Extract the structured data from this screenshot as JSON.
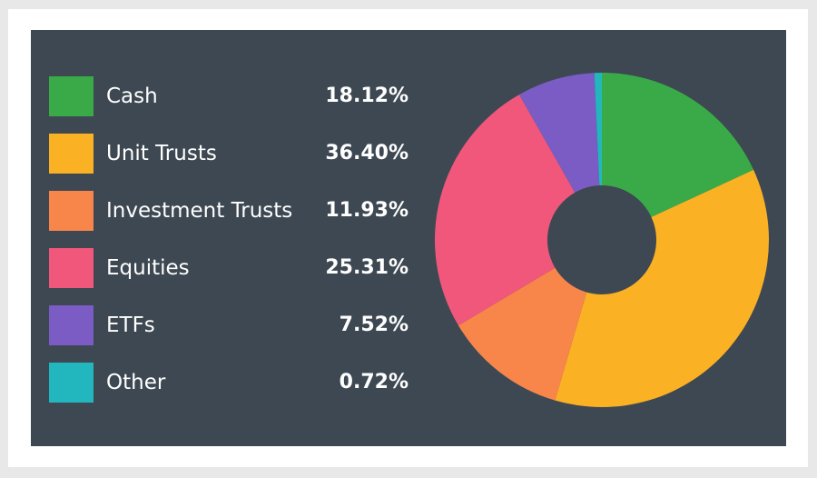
{
  "colors": {
    "page_background": "#e8e8e8",
    "frame_background": "#ffffff",
    "panel_background": "#3d4852",
    "text": "#ffffff"
  },
  "chart_data": {
    "type": "pie",
    "variant": "donut",
    "legend_position": "left",
    "categories": [
      "Cash",
      "Unit Trusts",
      "Investment Trusts",
      "Equities",
      "ETFs",
      "Other"
    ],
    "values": [
      18.12,
      36.4,
      11.93,
      25.31,
      7.52,
      0.72
    ],
    "value_labels": [
      "18.12%",
      "36.40%",
      "11.93%",
      "25.31%",
      "7.52%",
      "0.72%"
    ],
    "colors": [
      "#3aaa48",
      "#fbb124",
      "#f8864b",
      "#f0577b",
      "#7b5cc4",
      "#22b7be"
    ],
    "start_angle": "top",
    "direction": "clockwise"
  }
}
